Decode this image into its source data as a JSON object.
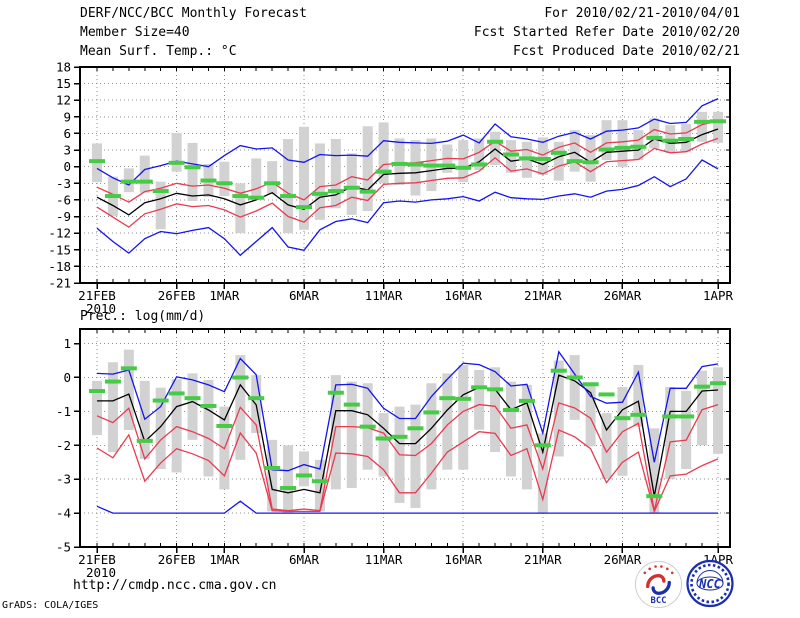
{
  "header": {
    "title": "DERF/NCC/BCC Monthly Forecast",
    "for_range": "For 2010/02/21-2010/04/01",
    "member_size": "Member Size=40",
    "fcst_started": "Fcst Started Refer Date 2010/02/20",
    "temp_title": "Mean Surf. Temp.: °C",
    "fcst_produced": "Fcst Produced Date 2010/02/21"
  },
  "footer": {
    "url": "http://cmdp.ncc.cma.gov.cn",
    "grads_credit": "GrADS: COLA/IGES",
    "bcc_label": "BCC",
    "ncc_label": "NCC"
  },
  "colors": {
    "blue": "#1414f0",
    "red": "#e93a50",
    "green": "#46cb46",
    "black": "#000000",
    "bar_gray": "#d2d2d2",
    "grid_gray": "#909090",
    "logo_navy": "#1a2fae",
    "logo_red": "#d32f2f"
  },
  "chart_data": [
    {
      "type": "line",
      "title": "Mean Surf. Temp.: °C",
      "ylabel": "°C",
      "ylim": [
        -21,
        18
      ],
      "yticks": [
        18,
        15,
        12,
        9,
        6,
        3,
        0,
        -3,
        -6,
        -9,
        -12,
        -15,
        -18,
        -21
      ],
      "grid": true,
      "n_days": 40,
      "x_ticks": [
        {
          "day": 0,
          "label": "21FEB",
          "sub": "2010"
        },
        {
          "day": 5,
          "label": "26FEB"
        },
        {
          "day": 8,
          "label": "1MAR"
        },
        {
          "day": 13,
          "label": "6MAR"
        },
        {
          "day": 18,
          "label": "11MAR"
        },
        {
          "day": 23,
          "label": "16MAR"
        },
        {
          "day": 28,
          "label": "21MAR"
        },
        {
          "day": 33,
          "label": "26MAR"
        },
        {
          "day": 39,
          "label": "1APR"
        }
      ],
      "series": [
        {
          "name": "ensemble-max",
          "color_key": "blue",
          "values": [
            -0.3,
            -2.0,
            -3.3,
            -0.5,
            0.2,
            1.0,
            0.5,
            0.0,
            2.0,
            3.8,
            3.2,
            3.4,
            1.2,
            0.8,
            2.2,
            2.0,
            2.1,
            1.9,
            4.7,
            4.4,
            4.3,
            4.2,
            4.6,
            5.7,
            4.3,
            7.7,
            5.4,
            5.0,
            4.4,
            5.5,
            6.2,
            5.0,
            6.4,
            6.6,
            7.0,
            8.6,
            7.8,
            8.0,
            11.0,
            12.3
          ]
        },
        {
          "name": "upper-spread",
          "color_key": "red",
          "values": [
            -3.7,
            -5.0,
            -6.4,
            -4.5,
            -3.9,
            -3.0,
            -3.5,
            -3.3,
            -3.9,
            -4.8,
            -4.0,
            -2.8,
            -4.8,
            -6.0,
            -3.6,
            -3.3,
            -1.8,
            -2.4,
            0.4,
            0.6,
            0.7,
            1.1,
            1.5,
            1.4,
            2.6,
            4.6,
            2.8,
            3.1,
            2.1,
            3.5,
            4.3,
            2.6,
            4.3,
            4.5,
            4.8,
            6.7,
            5.9,
            6.1,
            7.6,
            8.3
          ]
        },
        {
          "name": "ensemble-mean",
          "color_key": "black",
          "values": [
            -5.5,
            -7.0,
            -8.7,
            -6.5,
            -5.8,
            -4.8,
            -5.3,
            -5.1,
            -5.8,
            -6.9,
            -6.0,
            -4.7,
            -6.9,
            -7.7,
            -5.5,
            -5.1,
            -3.6,
            -4.2,
            -1.4,
            -1.2,
            -1.1,
            -0.7,
            -0.3,
            -0.3,
            0.9,
            3.2,
            1.0,
            1.4,
            0.4,
            1.8,
            2.6,
            0.8,
            2.6,
            2.8,
            3.0,
            5.0,
            4.2,
            4.4,
            5.8,
            6.8
          ]
        },
        {
          "name": "lower-spread",
          "color_key": "red",
          "values": [
            -7.3,
            -9.1,
            -10.9,
            -8.5,
            -7.7,
            -6.7,
            -7.2,
            -7.0,
            -7.8,
            -9.1,
            -8.0,
            -6.6,
            -9.0,
            -10.0,
            -7.4,
            -7.0,
            -5.5,
            -6.1,
            -3.2,
            -3.0,
            -2.9,
            -2.5,
            -2.1,
            -2.0,
            -0.8,
            1.6,
            -0.8,
            -0.4,
            -1.3,
            0.1,
            0.9,
            -0.9,
            0.9,
            1.1,
            1.3,
            3.3,
            2.5,
            2.7,
            4.1,
            5.1
          ]
        },
        {
          "name": "ensemble-min",
          "color_key": "blue",
          "values": [
            -11.1,
            -13.5,
            -15.6,
            -13.0,
            -11.7,
            -12.1,
            -11.5,
            -11.0,
            -13.0,
            -16.0,
            -13.5,
            -11.0,
            -14.5,
            -15.1,
            -11.4,
            -9.9,
            -9.4,
            -10.1,
            -6.5,
            -6.2,
            -6.4,
            -6.0,
            -5.8,
            -5.4,
            -6.2,
            -4.6,
            -5.6,
            -5.8,
            -5.9,
            -5.3,
            -4.9,
            -5.5,
            -4.4,
            -4.1,
            -3.4,
            -1.8,
            -3.6,
            -2.2,
            1.2,
            -0.4
          ]
        }
      ],
      "observation_dashes": {
        "name": "reference-green-dash",
        "color_key": "green",
        "values": [
          1.0,
          -5.3,
          -2.7,
          -2.7,
          -4.4,
          0.7,
          -0.1,
          -2.5,
          -3.0,
          -5.3,
          -5.6,
          -3.0,
          -5.3,
          -7.3,
          -4.9,
          -4.4,
          -3.8,
          -4.5,
          -0.9,
          0.5,
          0.4,
          0.2,
          0.2,
          -0.2,
          0.4,
          4.5,
          2.2,
          1.5,
          1.4,
          2.5,
          1.0,
          0.8,
          3.1,
          3.4,
          3.6,
          5.2,
          4.7,
          5.0,
          8.1,
          8.2
        ]
      },
      "spread_bars": {
        "name": "climate-range-bar",
        "color_key": "bar_gray",
        "top": [
          4.2,
          -1.8,
          -0.3,
          2.0,
          -2.7,
          6.1,
          4.3,
          0.5,
          0.9,
          -3.0,
          1.5,
          1.0,
          5.0,
          7.2,
          4.2,
          5.0,
          2.4,
          7.3,
          8.0,
          5.1,
          4.8,
          5.1,
          4.0,
          4.8,
          5.1,
          6.3,
          4.8,
          4.5,
          5.3,
          4.5,
          6.6,
          5.7,
          8.4,
          8.4,
          6.6,
          8.7,
          7.5,
          7.7,
          9.9,
          9.9
        ],
        "bottom": [
          -2.8,
          -8.9,
          -4.6,
          -4.7,
          -11.3,
          -0.9,
          -6.2,
          -5.5,
          -5.3,
          -12.0,
          -6.0,
          -5.0,
          -12.0,
          -11.4,
          -9.6,
          -7.5,
          -8.7,
          -8.0,
          -3.0,
          -3.3,
          -5.2,
          -4.4,
          -1.1,
          -2.8,
          -0.6,
          0.3,
          -1.1,
          -2.0,
          -1.5,
          -2.5,
          -0.9,
          -2.7,
          1.2,
          -0.1,
          1.2,
          3.3,
          2.5,
          2.6,
          4.5,
          4.3
        ]
      }
    },
    {
      "type": "line",
      "title": "Prec.: log(mm/d)",
      "ylabel": "log(mm/d)",
      "ylim": [
        -5,
        1.43
      ],
      "yticks": [
        1,
        0,
        -1,
        -2,
        -3,
        -4,
        -5
      ],
      "grid": true,
      "n_days": 40,
      "x_ticks": [
        {
          "day": 0,
          "label": "21FEB",
          "sub": "2010"
        },
        {
          "day": 5,
          "label": "26FEB"
        },
        {
          "day": 8,
          "label": "1MAR"
        },
        {
          "day": 13,
          "label": "6MAR"
        },
        {
          "day": 18,
          "label": "11MAR"
        },
        {
          "day": 23,
          "label": "16MAR"
        },
        {
          "day": 28,
          "label": "21MAR"
        },
        {
          "day": 33,
          "label": "26MAR"
        },
        {
          "day": 39,
          "label": "1APR"
        }
      ],
      "series": [
        {
          "name": "ensemble-max",
          "color_key": "blue",
          "values": [
            0.12,
            0.1,
            0.22,
            -1.23,
            -0.86,
            0.02,
            -0.07,
            -0.22,
            -0.42,
            0.56,
            0.08,
            -2.72,
            -2.75,
            -2.57,
            -2.7,
            -0.22,
            -0.2,
            -0.32,
            -0.91,
            -1.21,
            -1.21,
            -0.56,
            -0.05,
            0.42,
            0.38,
            0.17,
            -0.25,
            -0.2,
            -1.64,
            0.76,
            0.1,
            -0.56,
            -0.76,
            -0.73,
            0.16,
            -2.5,
            -0.32,
            -0.32,
            0.32,
            0.4
          ]
        },
        {
          "name": "ensemble-mean",
          "color_key": "black",
          "values": [
            -0.69,
            -0.69,
            -0.49,
            -1.89,
            -1.45,
            -0.86,
            -0.71,
            -0.96,
            -1.25,
            -0.22,
            -0.81,
            -3.3,
            -3.4,
            -3.3,
            -3.4,
            -0.98,
            -0.98,
            -1.1,
            -1.5,
            -1.95,
            -1.95,
            -1.5,
            -0.96,
            -0.51,
            -0.29,
            -0.35,
            -0.95,
            -0.75,
            -2.2,
            0.07,
            -0.1,
            -0.45,
            -1.55,
            -0.95,
            -0.7,
            -3.5,
            -1.0,
            -1.0,
            -0.4,
            -0.37
          ]
        },
        {
          "name": "upper-spread",
          "color_key": "red",
          "values": [
            -1.13,
            -1.33,
            -0.91,
            -2.4,
            -1.84,
            -1.45,
            -1.6,
            -1.8,
            -2.1,
            -0.88,
            -1.4,
            -3.88,
            -3.93,
            -3.88,
            -3.93,
            -1.45,
            -1.45,
            -1.48,
            -1.64,
            -2.28,
            -2.3,
            -1.95,
            -1.4,
            -1.0,
            -0.8,
            -0.85,
            -1.5,
            -1.4,
            -2.7,
            -0.75,
            -0.9,
            -1.2,
            -2.2,
            -1.6,
            -1.35,
            -3.93,
            -1.9,
            -1.85,
            -0.95,
            -0.8
          ]
        },
        {
          "name": "lower-spread",
          "color_key": "red",
          "values": [
            -2.08,
            -2.37,
            -1.69,
            -3.06,
            -2.52,
            -2.1,
            -2.25,
            -2.45,
            -2.9,
            -1.64,
            -2.23,
            -3.93,
            -3.95,
            -3.95,
            -3.95,
            -2.23,
            -2.25,
            -2.33,
            -2.72,
            -3.4,
            -3.4,
            -2.82,
            -2.2,
            -1.9,
            -1.6,
            -1.65,
            -2.3,
            -2.1,
            -3.6,
            -1.55,
            -1.75,
            -2.1,
            -3.1,
            -2.5,
            -2.2,
            -3.95,
            -2.9,
            -2.85,
            -2.6,
            -2.4
          ]
        },
        {
          "name": "ensemble-min",
          "color_key": "blue",
          "values": [
            -3.8,
            -4,
            -4,
            -4,
            -4,
            -4,
            -4,
            -4,
            -4,
            -3.65,
            -4,
            -4,
            -4,
            -4,
            -4,
            -4,
            -4,
            -4,
            -4,
            -4,
            -4,
            -4,
            -4,
            -4,
            -4,
            -4,
            -4,
            -4,
            -4,
            -4,
            -4,
            -4,
            -4,
            -4,
            -4,
            -4,
            -4,
            -4,
            -4,
            -4
          ]
        }
      ],
      "observation_dashes": {
        "name": "reference-green-dash",
        "color_key": "green",
        "values": [
          -0.4,
          -0.12,
          0.27,
          -1.87,
          -0.68,
          -0.47,
          -0.61,
          -0.84,
          -1.43,
          0.0,
          -0.61,
          -2.67,
          -3.26,
          -2.89,
          -3.06,
          -0.45,
          -0.8,
          -1.45,
          -1.8,
          -1.75,
          -1.5,
          -1.03,
          -0.61,
          -0.63,
          -0.29,
          -0.35,
          -0.96,
          -0.69,
          -2.0,
          0.2,
          0.0,
          -0.2,
          -0.5,
          -1.2,
          -1.1,
          -3.5,
          -1.15,
          -1.15,
          -0.27,
          -0.17
        ]
      },
      "spread_bars": {
        "name": "climate-range-bar",
        "color_key": "bar_gray",
        "top": [
          -0.1,
          0.45,
          0.82,
          -0.1,
          -0.3,
          -0.05,
          0.12,
          -0.07,
          -0.86,
          0.66,
          0.07,
          -1.84,
          -2.0,
          -2.18,
          -2.43,
          0.07,
          -0.12,
          -0.17,
          -1.05,
          -0.86,
          -0.8,
          -0.17,
          0.12,
          0.37,
          0.22,
          0.3,
          -0.12,
          -0.22,
          -1.65,
          0.5,
          0.66,
          -0.22,
          -1.05,
          -0.28,
          0.37,
          -1.5,
          -0.28,
          -0.4,
          0.2,
          0.3
        ],
        "bottom": [
          -1.7,
          -2.2,
          -1.55,
          -2.4,
          -2.7,
          -2.8,
          -1.84,
          -2.92,
          -3.3,
          -2.43,
          -1.64,
          -3.95,
          -4.0,
          -3.21,
          -3.95,
          -3.3,
          -3.26,
          -2.72,
          -2.92,
          -3.7,
          -3.85,
          -3.3,
          -2.72,
          -2.72,
          -1.54,
          -2.2,
          -2.92,
          -3.3,
          -4.0,
          -2.33,
          -1.25,
          -2.03,
          -3.0,
          -2.9,
          -1.45,
          -4.0,
          -3.0,
          -2.7,
          -2.0,
          -2.25
        ]
      }
    }
  ]
}
